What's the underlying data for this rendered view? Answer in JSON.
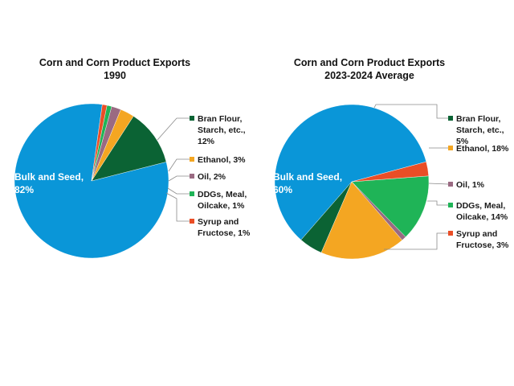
{
  "chart_data": [
    {
      "type": "pie",
      "title": [
        "Corn and Corn Product Exports",
        "1990"
      ],
      "slices": [
        {
          "label": "Bulk and Seed",
          "value": 82,
          "color": "#0a96d8",
          "text": [
            "Bulk and Seed,",
            "82%"
          ]
        },
        {
          "label": "Bran Flour, Starch, etc.",
          "value": 12,
          "color": "#0b6334",
          "text": [
            "Bran Flour,",
            "Starch, etc.,",
            "12%"
          ]
        },
        {
          "label": "Ethanol",
          "value": 3,
          "color": "#f4a622",
          "text": [
            "Ethanol, 3%"
          ]
        },
        {
          "label": "Oil",
          "value": 2,
          "color": "#9a6a82",
          "text": [
            "Oil, 2%"
          ]
        },
        {
          "label": "DDGs, Meal, Oilcake",
          "value": 1,
          "color": "#1fb457",
          "text": [
            "DDGs, Meal,",
            "Oilcake, 1%"
          ]
        },
        {
          "label": "Syrup and Fructose",
          "value": 1,
          "color": "#ea4e26",
          "text": [
            "Syrup and",
            "Fructose, 1%"
          ]
        }
      ]
    },
    {
      "type": "pie",
      "title": [
        "Corn and Corn Product Exports",
        "2023-2024 Average"
      ],
      "slices": [
        {
          "label": "Bulk and Seed",
          "value": 60,
          "color": "#0a96d8",
          "text": [
            "Bulk and Seed,",
            "60%"
          ]
        },
        {
          "label": "Bran Flour, Starch, etc.",
          "value": 5,
          "color": "#0b6334",
          "text": [
            "Bran Flour,",
            "Starch, etc.,",
            "5%"
          ]
        },
        {
          "label": "Ethanol",
          "value": 18,
          "color": "#f4a622",
          "text": [
            "Ethanol, 18%"
          ]
        },
        {
          "label": "Oil",
          "value": 1,
          "color": "#9a6a82",
          "text": [
            "Oil, 1%"
          ]
        },
        {
          "label": "DDGs, Meal, Oilcake",
          "value": 14,
          "color": "#1fb457",
          "text": [
            "DDGs, Meal,",
            "Oilcake, 14%"
          ]
        },
        {
          "label": "Syrup and Fructose",
          "value": 3,
          "color": "#ea4e26",
          "text": [
            "Syrup and",
            "Fructose, 3%"
          ]
        }
      ]
    }
  ]
}
